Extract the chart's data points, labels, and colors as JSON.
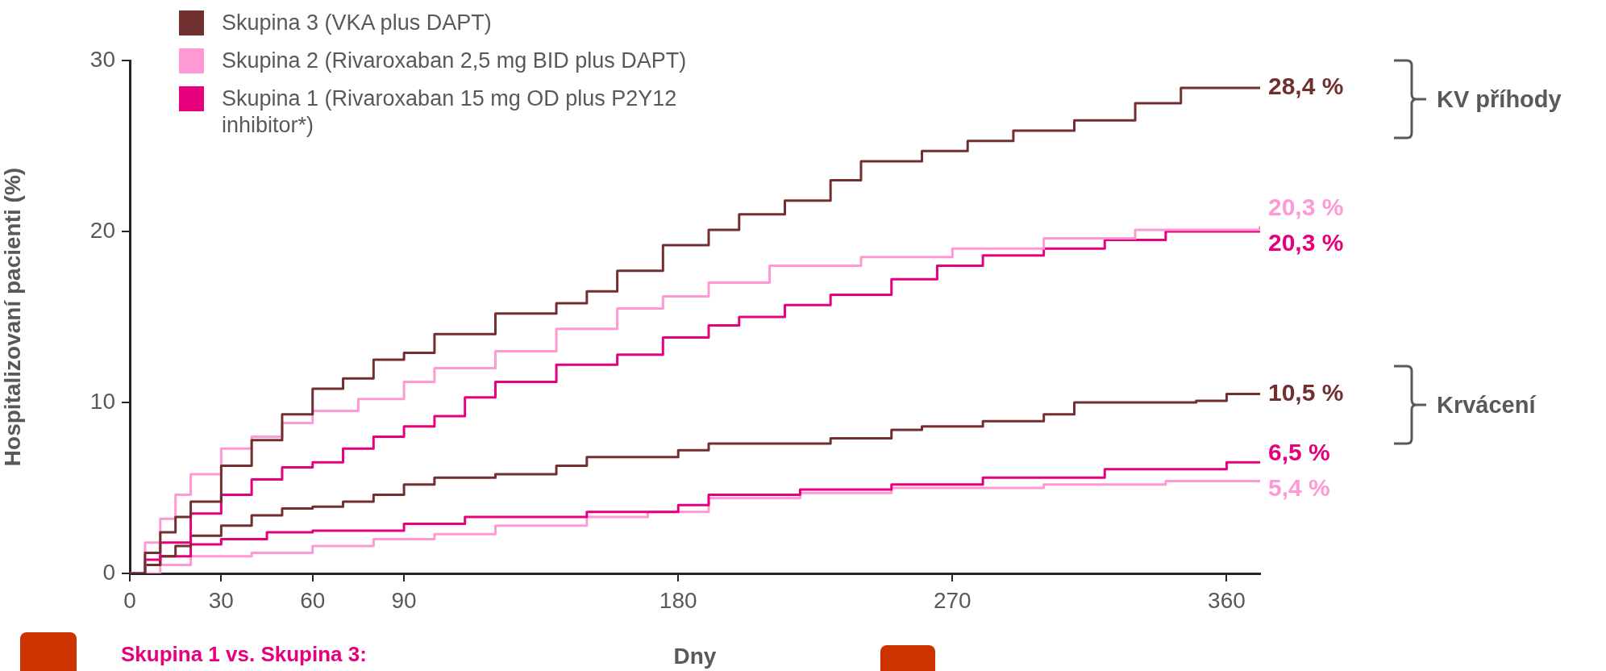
{
  "chart_data": {
    "type": "step",
    "xlabel": "Dny",
    "ylabel": "Hospitalizovaní pacienti (%)",
    "xlim": [
      0,
      371
    ],
    "xticks": [
      0,
      30,
      60,
      90,
      180,
      270,
      360
    ],
    "ylim": [
      0,
      30
    ],
    "yticks": [
      0,
      10,
      20,
      30
    ],
    "grid": false,
    "legend": "top left",
    "marker": "none",
    "line_style": "solid",
    "annotations": [
      "KV příhody",
      "Krvácení",
      "Skupina 1 vs. Skupina 3:"
    ],
    "series": [
      {
        "name": "Skupina 3 (VKA plus DAPT)",
        "color": "#722f2f",
        "x": [
          0,
          5,
          10,
          15,
          20,
          30,
          40,
          50,
          60,
          70,
          80,
          90,
          100,
          120,
          140,
          150,
          160,
          175,
          190,
          200,
          215,
          230,
          240,
          260,
          275,
          290,
          310,
          330,
          345,
          371
        ],
        "values": [
          0,
          1.2,
          2.4,
          3.3,
          4.2,
          6.3,
          7.8,
          9.3,
          10.8,
          11.4,
          12.5,
          12.9,
          14,
          15.2,
          15.8,
          16.5,
          17.7,
          19.2,
          20.1,
          21,
          21.8,
          23,
          24.1,
          24.7,
          25.3,
          25.9,
          26.5,
          27.5,
          28.4,
          28.4
        ],
        "value_labels": [
          null,
          null,
          null,
          null,
          null,
          null,
          null,
          null,
          null,
          null,
          null,
          null,
          null,
          null,
          null,
          null,
          null,
          null,
          null,
          null,
          null,
          null,
          null,
          null,
          null,
          null,
          null,
          null,
          null,
          "28,4 %"
        ]
      },
      {
        "name": "Skupina 2 (Rivaroxaban 2,5 mg BID plus DAPT)",
        "color": "#ff99d6",
        "x": [
          0,
          5,
          10,
          15,
          20,
          30,
          40,
          50,
          60,
          75,
          90,
          100,
          120,
          140,
          160,
          175,
          190,
          210,
          240,
          270,
          300,
          330,
          371
        ],
        "values": [
          0,
          1.8,
          3.2,
          4.6,
          5.8,
          7.3,
          8,
          8.8,
          9.5,
          10.2,
          11.2,
          12,
          13,
          14.3,
          15.5,
          16.2,
          17,
          18,
          18.5,
          19,
          19.6,
          20.1,
          20.3
        ],
        "value_labels": [
          null,
          null,
          null,
          null,
          null,
          null,
          null,
          null,
          null,
          null,
          null,
          null,
          null,
          null,
          null,
          null,
          null,
          null,
          null,
          null,
          null,
          null,
          "20,3 %"
        ]
      },
      {
        "name": "Skupina 1 (Rivaroxaban 15 mg OD plus P2Y12 inhibitor*)",
        "color": "#e6007e",
        "x": [
          0,
          5,
          10,
          20,
          30,
          40,
          50,
          60,
          70,
          80,
          90,
          100,
          110,
          120,
          140,
          160,
          175,
          190,
          200,
          215,
          230,
          250,
          265,
          280,
          300,
          320,
          340,
          371
        ],
        "values": [
          0,
          0.8,
          1.8,
          3.5,
          4.6,
          5.5,
          6.2,
          6.5,
          7.3,
          8,
          8.6,
          9.2,
          10.3,
          11.2,
          12.2,
          12.8,
          13.8,
          14.5,
          15,
          15.7,
          16.3,
          17.2,
          18,
          18.6,
          19,
          19.5,
          20,
          20.3
        ],
        "value_labels": [
          null,
          null,
          null,
          null,
          null,
          null,
          null,
          null,
          null,
          null,
          null,
          null,
          null,
          null,
          null,
          null,
          null,
          null,
          null,
          null,
          null,
          null,
          null,
          null,
          null,
          null,
          null,
          "20,3 %"
        ]
      },
      {
        "color": "#722f2f",
        "x": [
          0,
          5,
          10,
          15,
          20,
          30,
          40,
          50,
          60,
          70,
          80,
          90,
          100,
          120,
          140,
          150,
          180,
          190,
          230,
          250,
          260,
          280,
          300,
          310,
          350,
          360,
          371
        ],
        "values": [
          0,
          0.5,
          1,
          1.6,
          2.2,
          2.8,
          3.4,
          3.8,
          3.9,
          4.2,
          4.6,
          5.2,
          5.6,
          5.8,
          6.3,
          6.8,
          7.2,
          7.6,
          7.9,
          8.4,
          8.6,
          8.9,
          9.3,
          10,
          10.1,
          10.5,
          10.5
        ],
        "value_labels": [
          null,
          null,
          null,
          null,
          null,
          null,
          null,
          null,
          null,
          null,
          null,
          null,
          null,
          null,
          null,
          null,
          null,
          null,
          null,
          null,
          null,
          null,
          null,
          null,
          null,
          null,
          "10,5 %"
        ]
      },
      {
        "color": "#e6007e",
        "x": [
          0,
          5,
          10,
          20,
          30,
          45,
          60,
          90,
          110,
          150,
          180,
          190,
          220,
          250,
          280,
          320,
          360,
          371
        ],
        "values": [
          0,
          0.5,
          1,
          1.7,
          2,
          2.4,
          2.5,
          2.9,
          3.3,
          3.6,
          4,
          4.6,
          4.9,
          5.2,
          5.6,
          6.1,
          6.5,
          6.5
        ],
        "value_labels": [
          null,
          null,
          null,
          null,
          null,
          null,
          null,
          null,
          null,
          null,
          null,
          null,
          null,
          null,
          null,
          null,
          null,
          "6,5 %"
        ]
      },
      {
        "color": "#ff99d6",
        "x": [
          0,
          10,
          20,
          40,
          60,
          80,
          100,
          120,
          150,
          170,
          190,
          220,
          250,
          300,
          340,
          371
        ],
        "values": [
          0,
          0.5,
          1,
          1.2,
          1.6,
          2,
          2.3,
          2.8,
          3.3,
          3.6,
          4.4,
          4.7,
          5,
          5.2,
          5.4,
          5.4
        ],
        "value_labels": [
          null,
          null,
          null,
          null,
          null,
          null,
          null,
          null,
          null,
          null,
          null,
          null,
          null,
          null,
          null,
          "5,4 %"
        ]
      }
    ]
  }
}
